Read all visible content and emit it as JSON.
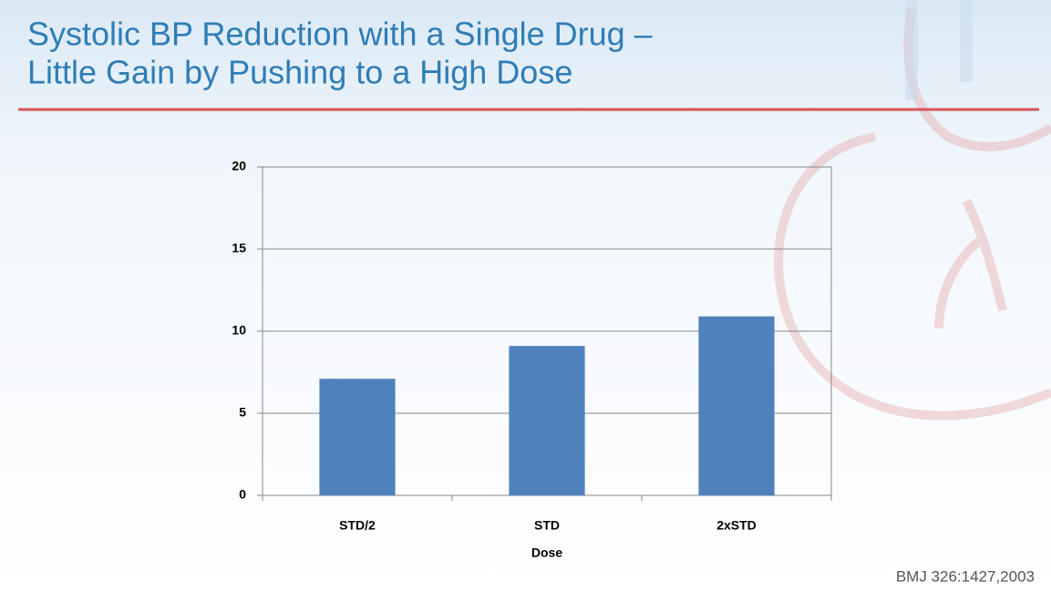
{
  "chart_data": {
    "type": "bar",
    "title": [
      "Systolic BP Reduction with a Single Drug –",
      "Little Gain by Pushing to a High Dose"
    ],
    "categories": [
      "STD/2",
      "STD",
      "2xSTD"
    ],
    "values": [
      7.1,
      9.1,
      10.9
    ],
    "color": "#4f81bd",
    "x_label": "Dose",
    "ylim": [
      0,
      20
    ],
    "yticks": [
      0,
      5,
      10,
      15,
      20
    ],
    "grid": true,
    "source": "BMJ 326:1427,2003"
  }
}
